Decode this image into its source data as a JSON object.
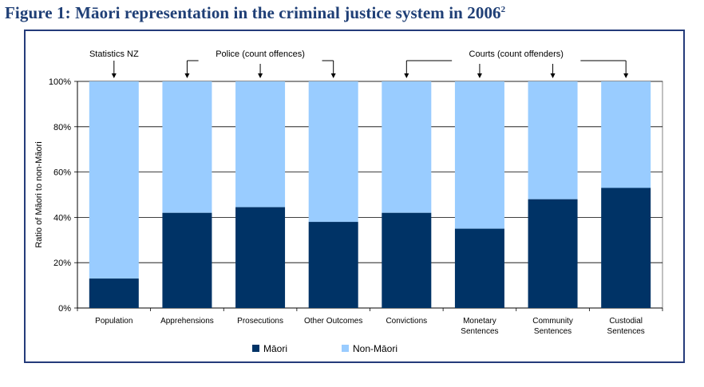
{
  "figure": {
    "title": "Figure 1:  Māori representation in the criminal justice system in 2006",
    "footnote_mark": "2"
  },
  "colors": {
    "maori": "#003366",
    "non_maori": "#99ccff",
    "frame": "#243b7a",
    "title": "#1f3f76"
  },
  "groups": [
    {
      "label": "Statistics NZ",
      "categories": [
        0
      ]
    },
    {
      "label": "Police (count offences)",
      "categories": [
        1,
        2,
        3
      ]
    },
    {
      "label": "Courts (count offenders)",
      "categories": [
        4,
        5,
        6,
        7
      ]
    }
  ],
  "chart_data": {
    "type": "bar",
    "stacked": true,
    "percent": true,
    "categories": [
      [
        "Population"
      ],
      [
        "Apprehensions"
      ],
      [
        "Prosecutions"
      ],
      [
        "Other Outcomes"
      ],
      [
        "Convictions"
      ],
      [
        "Monetary",
        "Sentences"
      ],
      [
        "Community",
        "Sentences"
      ],
      [
        "Custodial",
        "Sentences"
      ]
    ],
    "series": [
      {
        "name": "Māori",
        "values": [
          13,
          42,
          44.5,
          38,
          42,
          35,
          48,
          53
        ]
      },
      {
        "name": "Non-Māori",
        "values": [
          87,
          58,
          55.5,
          62,
          58,
          65,
          52,
          47
        ]
      }
    ],
    "ylabel": "Ratio of Māori to non-Māori",
    "xlabel": "",
    "ylim": [
      0,
      100
    ],
    "yticks": [
      "0%",
      "20%",
      "40%",
      "60%",
      "80%",
      "100%"
    ],
    "grid": true,
    "legend": "bottom"
  }
}
